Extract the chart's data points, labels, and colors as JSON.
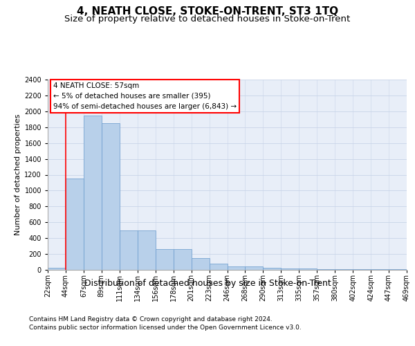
{
  "title": "4, NEATH CLOSE, STOKE-ON-TRENT, ST3 1TQ",
  "subtitle": "Size of property relative to detached houses in Stoke-on-Trent",
  "xlabel": "Distribution of detached houses by size in Stoke-on-Trent",
  "ylabel": "Number of detached properties",
  "footer_line1": "Contains HM Land Registry data © Crown copyright and database right 2024.",
  "footer_line2": "Contains public sector information licensed under the Open Government Licence v3.0.",
  "annotation_title": "4 NEATH CLOSE: 57sqm",
  "annotation_line2": "← 5% of detached houses are smaller (395)",
  "annotation_line3": "94% of semi-detached houses are larger (6,843) →",
  "bar_values": [
    30,
    1150,
    1950,
    1850,
    500,
    500,
    265,
    265,
    150,
    75,
    45,
    45,
    30,
    15,
    15,
    10,
    10,
    5,
    5,
    5
  ],
  "bar_labels": [
    "22sqm",
    "44sqm",
    "67sqm",
    "89sqm",
    "111sqm",
    "134sqm",
    "156sqm",
    "178sqm",
    "201sqm",
    "223sqm",
    "246sqm",
    "268sqm",
    "290sqm",
    "313sqm",
    "335sqm",
    "357sqm",
    "380sqm",
    "402sqm",
    "424sqm",
    "447sqm",
    "469sqm"
  ],
  "bar_color": "#b8d0ea",
  "bar_edge_color": "#6699cc",
  "ylim": [
    0,
    2400
  ],
  "yticks": [
    0,
    200,
    400,
    600,
    800,
    1000,
    1200,
    1400,
    1600,
    1800,
    2000,
    2200,
    2400
  ],
  "plot_bg_color": "#e8eef8",
  "background_color": "#ffffff",
  "grid_color": "#c8d4e8",
  "title_fontsize": 11,
  "subtitle_fontsize": 9.5,
  "xlabel_fontsize": 9,
  "ylabel_fontsize": 8,
  "tick_fontsize": 7,
  "annotation_fontsize": 7.5,
  "footer_fontsize": 6.5
}
